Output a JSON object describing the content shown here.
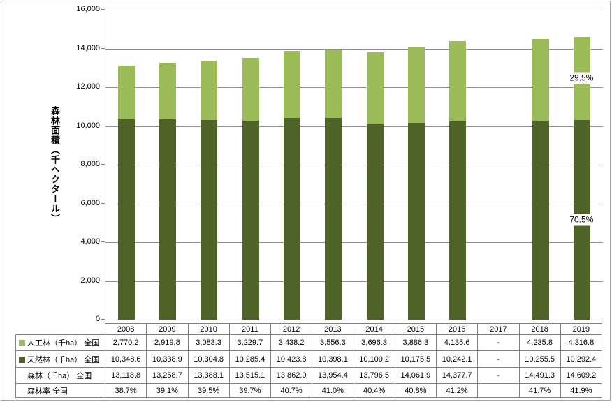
{
  "chart_data": {
    "type": "bar",
    "stacked": true,
    "title": "",
    "xlabel": "",
    "ylabel": "森林面積（千ヘクタール）",
    "ylim": [
      0,
      16000
    ],
    "ytick_step": 2000,
    "y_tick_labels": [
      "0",
      "2,000",
      "4,000",
      "6,000",
      "8,000",
      "10,000",
      "12,000",
      "14,000",
      "16,000"
    ],
    "grid": true,
    "legend_position": "table-row-labels",
    "categories": [
      "2008",
      "2009",
      "2010",
      "2011",
      "2012",
      "2013",
      "2014",
      "2015",
      "2016",
      "2017",
      "2018",
      "2019"
    ],
    "series": [
      {
        "name": "人工林（千ha） 全国",
        "color": "#9bbb59",
        "values": [
          2770.2,
          2919.8,
          3083.3,
          3229.7,
          3438.2,
          3556.3,
          3696.3,
          3886.3,
          4135.6,
          null,
          4235.8,
          4316.8
        ]
      },
      {
        "name": "天然林（千ha） 全国",
        "color": "#4f6228",
        "values": [
          10348.6,
          10338.9,
          10304.8,
          10285.4,
          10423.8,
          10398.1,
          10100.2,
          10175.5,
          10242.1,
          null,
          10255.5,
          10292.4
        ]
      }
    ],
    "totals": {
      "name": "森林（千ha） 全国",
      "values": [
        13118.8,
        13258.7,
        13388.1,
        13515.1,
        13862.0,
        13954.4,
        13796.5,
        14061.9,
        14377.7,
        null,
        14491.3,
        14609.2
      ]
    },
    "rate": {
      "name": "森林率 全国",
      "values": [
        "38.7%",
        "39.1%",
        "39.5%",
        "39.7%",
        "40.7%",
        "41.0%",
        "40.4%",
        "40.8%",
        "41.2%",
        "",
        "41.7%",
        "41.9%"
      ]
    },
    "annotations": [
      {
        "text": "29.5%",
        "category": "2019",
        "series_index": 0
      },
      {
        "text": "70.5%",
        "category": "2019",
        "series_index": 1
      }
    ]
  },
  "table": {
    "years": [
      "2008",
      "2009",
      "2010",
      "2011",
      "2012",
      "2013",
      "2014",
      "2015",
      "2016",
      "2017",
      "2018",
      "2019"
    ],
    "rows": [
      {
        "label": "人工林（千ha） 全国",
        "swatch": "#9bbb59",
        "values": [
          "2,770.2",
          "2,919.8",
          "3,083.3",
          "3,229.7",
          "3,438.2",
          "3,556.3",
          "3,696.3",
          "3,886.3",
          "4,135.6",
          "-",
          "4,235.8",
          "4,316.8"
        ]
      },
      {
        "label": "天然林（千ha） 全国",
        "swatch": "#4f6228",
        "values": [
          "10,348.6",
          "10,338.9",
          "10,304.8",
          "10,285.4",
          "10,423.8",
          "10,398.1",
          "10,100.2",
          "10,175.5",
          "10,242.1",
          "-",
          "10,255.5",
          "10,292.4"
        ]
      },
      {
        "label": "森林（千ha） 全国",
        "swatch": null,
        "values": [
          "13,118.8",
          "13,258.7",
          "13,388.1",
          "13,515.1",
          "13,862.0",
          "13,954.4",
          "13,796.5",
          "14,061.9",
          "14,377.7",
          "-",
          "14,491.3",
          "14,609.2"
        ]
      },
      {
        "label": "森林率 全国",
        "swatch": null,
        "values": [
          "38.7%",
          "39.1%",
          "39.5%",
          "39.7%",
          "40.7%",
          "41.0%",
          "40.4%",
          "40.8%",
          "41.2%",
          "",
          "41.7%",
          "41.9%"
        ]
      }
    ]
  },
  "colors": {
    "planted_forest": "#9bbb59",
    "natural_forest": "#4f6228",
    "gridline": "#8f8f8f",
    "axis": "#808080",
    "table_border": "#808080",
    "frame_border": "#a6a6a6"
  }
}
